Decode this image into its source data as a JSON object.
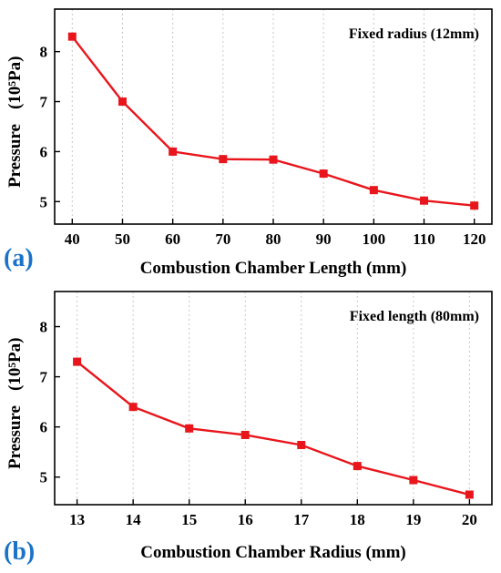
{
  "chart_data": [
    {
      "type": "line",
      "panel_label": "(a)",
      "annotation": "Fixed radius (12mm)",
      "xlabel": "Combustion Chamber Length (mm)",
      "ylabel": "Pressure",
      "ylabel_unit": "(10⁵Pa)",
      "x": [
        40,
        50,
        60,
        70,
        80,
        90,
        100,
        110,
        120
      ],
      "y": [
        8.3,
        7.0,
        6.0,
        5.85,
        5.84,
        5.56,
        5.23,
        5.02,
        4.92
      ],
      "xticks": [
        40,
        50,
        60,
        70,
        80,
        90,
        100,
        110,
        120
      ],
      "yticks": [
        5,
        6,
        7,
        8
      ],
      "xlim": [
        36.5,
        123.5
      ],
      "ylim": [
        4.55,
        8.85
      ],
      "grid": "vertical-dotted",
      "color": "#e8161c"
    },
    {
      "type": "line",
      "panel_label": "(b)",
      "annotation": "Fixed length (80mm)",
      "xlabel": "Combustion Chamber Radius (mm)",
      "ylabel": "Pressure",
      "ylabel_unit": "(10⁵Pa)",
      "x": [
        13,
        14,
        15,
        16,
        17,
        18,
        19,
        20
      ],
      "y": [
        7.3,
        6.4,
        5.97,
        5.84,
        5.64,
        5.22,
        4.94,
        4.65
      ],
      "xticks": [
        13,
        14,
        15,
        16,
        17,
        18,
        19,
        20
      ],
      "yticks": [
        5,
        6,
        7,
        8
      ],
      "xlim": [
        12.6,
        20.4
      ],
      "ylim": [
        4.45,
        8.7
      ],
      "grid": "vertical-dotted",
      "color": "#e8161c"
    }
  ]
}
